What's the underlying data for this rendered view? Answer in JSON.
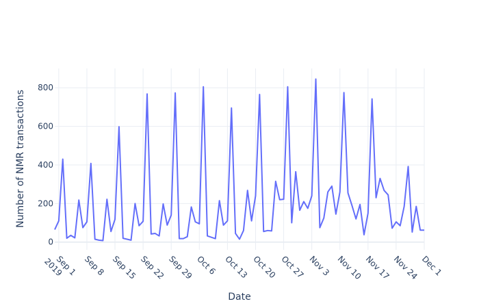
{
  "chart_data": {
    "type": "line",
    "title": "",
    "xlabel": "Date",
    "ylabel": "Number of NMR transactions",
    "xlim": [
      "2019-08-31",
      "2019-12-01"
    ],
    "ylim": [
      -40,
      900
    ],
    "grid": true,
    "x_tick_labels": [
      {
        "date": "2019-09-01",
        "lines": [
          "Sep 1",
          "2019"
        ]
      },
      {
        "date": "2019-09-08",
        "lines": [
          "Sep 8"
        ]
      },
      {
        "date": "2019-09-15",
        "lines": [
          "Sep 15"
        ]
      },
      {
        "date": "2019-09-22",
        "lines": [
          "Sep 22"
        ]
      },
      {
        "date": "2019-09-29",
        "lines": [
          "Sep 29"
        ]
      },
      {
        "date": "2019-10-06",
        "lines": [
          "Oct 6"
        ]
      },
      {
        "date": "2019-10-13",
        "lines": [
          "Oct 13"
        ]
      },
      {
        "date": "2019-10-20",
        "lines": [
          "Oct 20"
        ]
      },
      {
        "date": "2019-10-27",
        "lines": [
          "Oct 27"
        ]
      },
      {
        "date": "2019-11-03",
        "lines": [
          "Nov 3"
        ]
      },
      {
        "date": "2019-11-10",
        "lines": [
          "Nov 10"
        ]
      },
      {
        "date": "2019-11-17",
        "lines": [
          "Nov 17"
        ]
      },
      {
        "date": "2019-11-24",
        "lines": [
          "Nov 24"
        ]
      },
      {
        "date": "2019-12-01",
        "lines": [
          "Dec 1"
        ]
      }
    ],
    "y_ticks": [
      0,
      200,
      400,
      600,
      800
    ],
    "series": [
      {
        "color": "#636efa",
        "x": [
          "2019-08-31",
          "2019-09-01",
          "2019-09-02",
          "2019-09-03",
          "2019-09-04",
          "2019-09-05",
          "2019-09-06",
          "2019-09-07",
          "2019-09-08",
          "2019-09-09",
          "2019-09-10",
          "2019-09-11",
          "2019-09-12",
          "2019-09-13",
          "2019-09-14",
          "2019-09-15",
          "2019-09-16",
          "2019-09-17",
          "2019-09-18",
          "2019-09-19",
          "2019-09-20",
          "2019-09-21",
          "2019-09-22",
          "2019-09-23",
          "2019-09-24",
          "2019-09-25",
          "2019-09-26",
          "2019-09-27",
          "2019-09-28",
          "2019-09-29",
          "2019-09-30",
          "2019-10-01",
          "2019-10-02",
          "2019-10-03",
          "2019-10-04",
          "2019-10-05",
          "2019-10-06",
          "2019-10-07",
          "2019-10-08",
          "2019-10-09",
          "2019-10-10",
          "2019-10-11",
          "2019-10-12",
          "2019-10-13",
          "2019-10-14",
          "2019-10-15",
          "2019-10-16",
          "2019-10-17",
          "2019-10-18",
          "2019-10-19",
          "2019-10-20",
          "2019-10-21",
          "2019-10-22",
          "2019-10-23",
          "2019-10-24",
          "2019-10-25",
          "2019-10-26",
          "2019-10-27",
          "2019-10-28",
          "2019-10-29",
          "2019-10-30",
          "2019-10-31",
          "2019-11-01",
          "2019-11-02",
          "2019-11-03",
          "2019-11-04",
          "2019-11-05",
          "2019-11-06",
          "2019-11-07",
          "2019-11-08",
          "2019-11-09",
          "2019-11-10",
          "2019-11-11",
          "2019-11-12",
          "2019-11-13",
          "2019-11-14",
          "2019-11-15",
          "2019-11-16",
          "2019-11-17",
          "2019-11-18",
          "2019-11-19",
          "2019-11-20",
          "2019-11-21",
          "2019-11-22",
          "2019-11-23",
          "2019-11-24",
          "2019-11-25",
          "2019-11-26",
          "2019-11-27",
          "2019-11-28",
          "2019-11-29",
          "2019-11-30",
          "2019-12-01"
        ],
        "y": [
          65,
          110,
          430,
          20,
          35,
          22,
          218,
          75,
          105,
          408,
          15,
          10,
          8,
          222,
          55,
          118,
          598,
          20,
          15,
          10,
          200,
          85,
          108,
          768,
          42,
          45,
          32,
          198,
          88,
          140,
          773,
          18,
          18,
          28,
          182,
          105,
          95,
          805,
          32,
          25,
          18,
          215,
          88,
          110,
          695,
          45,
          15,
          60,
          268,
          110,
          240,
          765,
          55,
          60,
          58,
          315,
          220,
          222,
          805,
          100,
          365,
          165,
          210,
          175,
          240,
          845,
          75,
          125,
          260,
          290,
          145,
          260,
          775,
          255,
          190,
          120,
          195,
          38,
          150,
          742,
          230,
          330,
          268,
          245,
          72,
          105,
          85,
          185,
          392,
          52,
          185,
          62,
          62
        ]
      }
    ]
  }
}
